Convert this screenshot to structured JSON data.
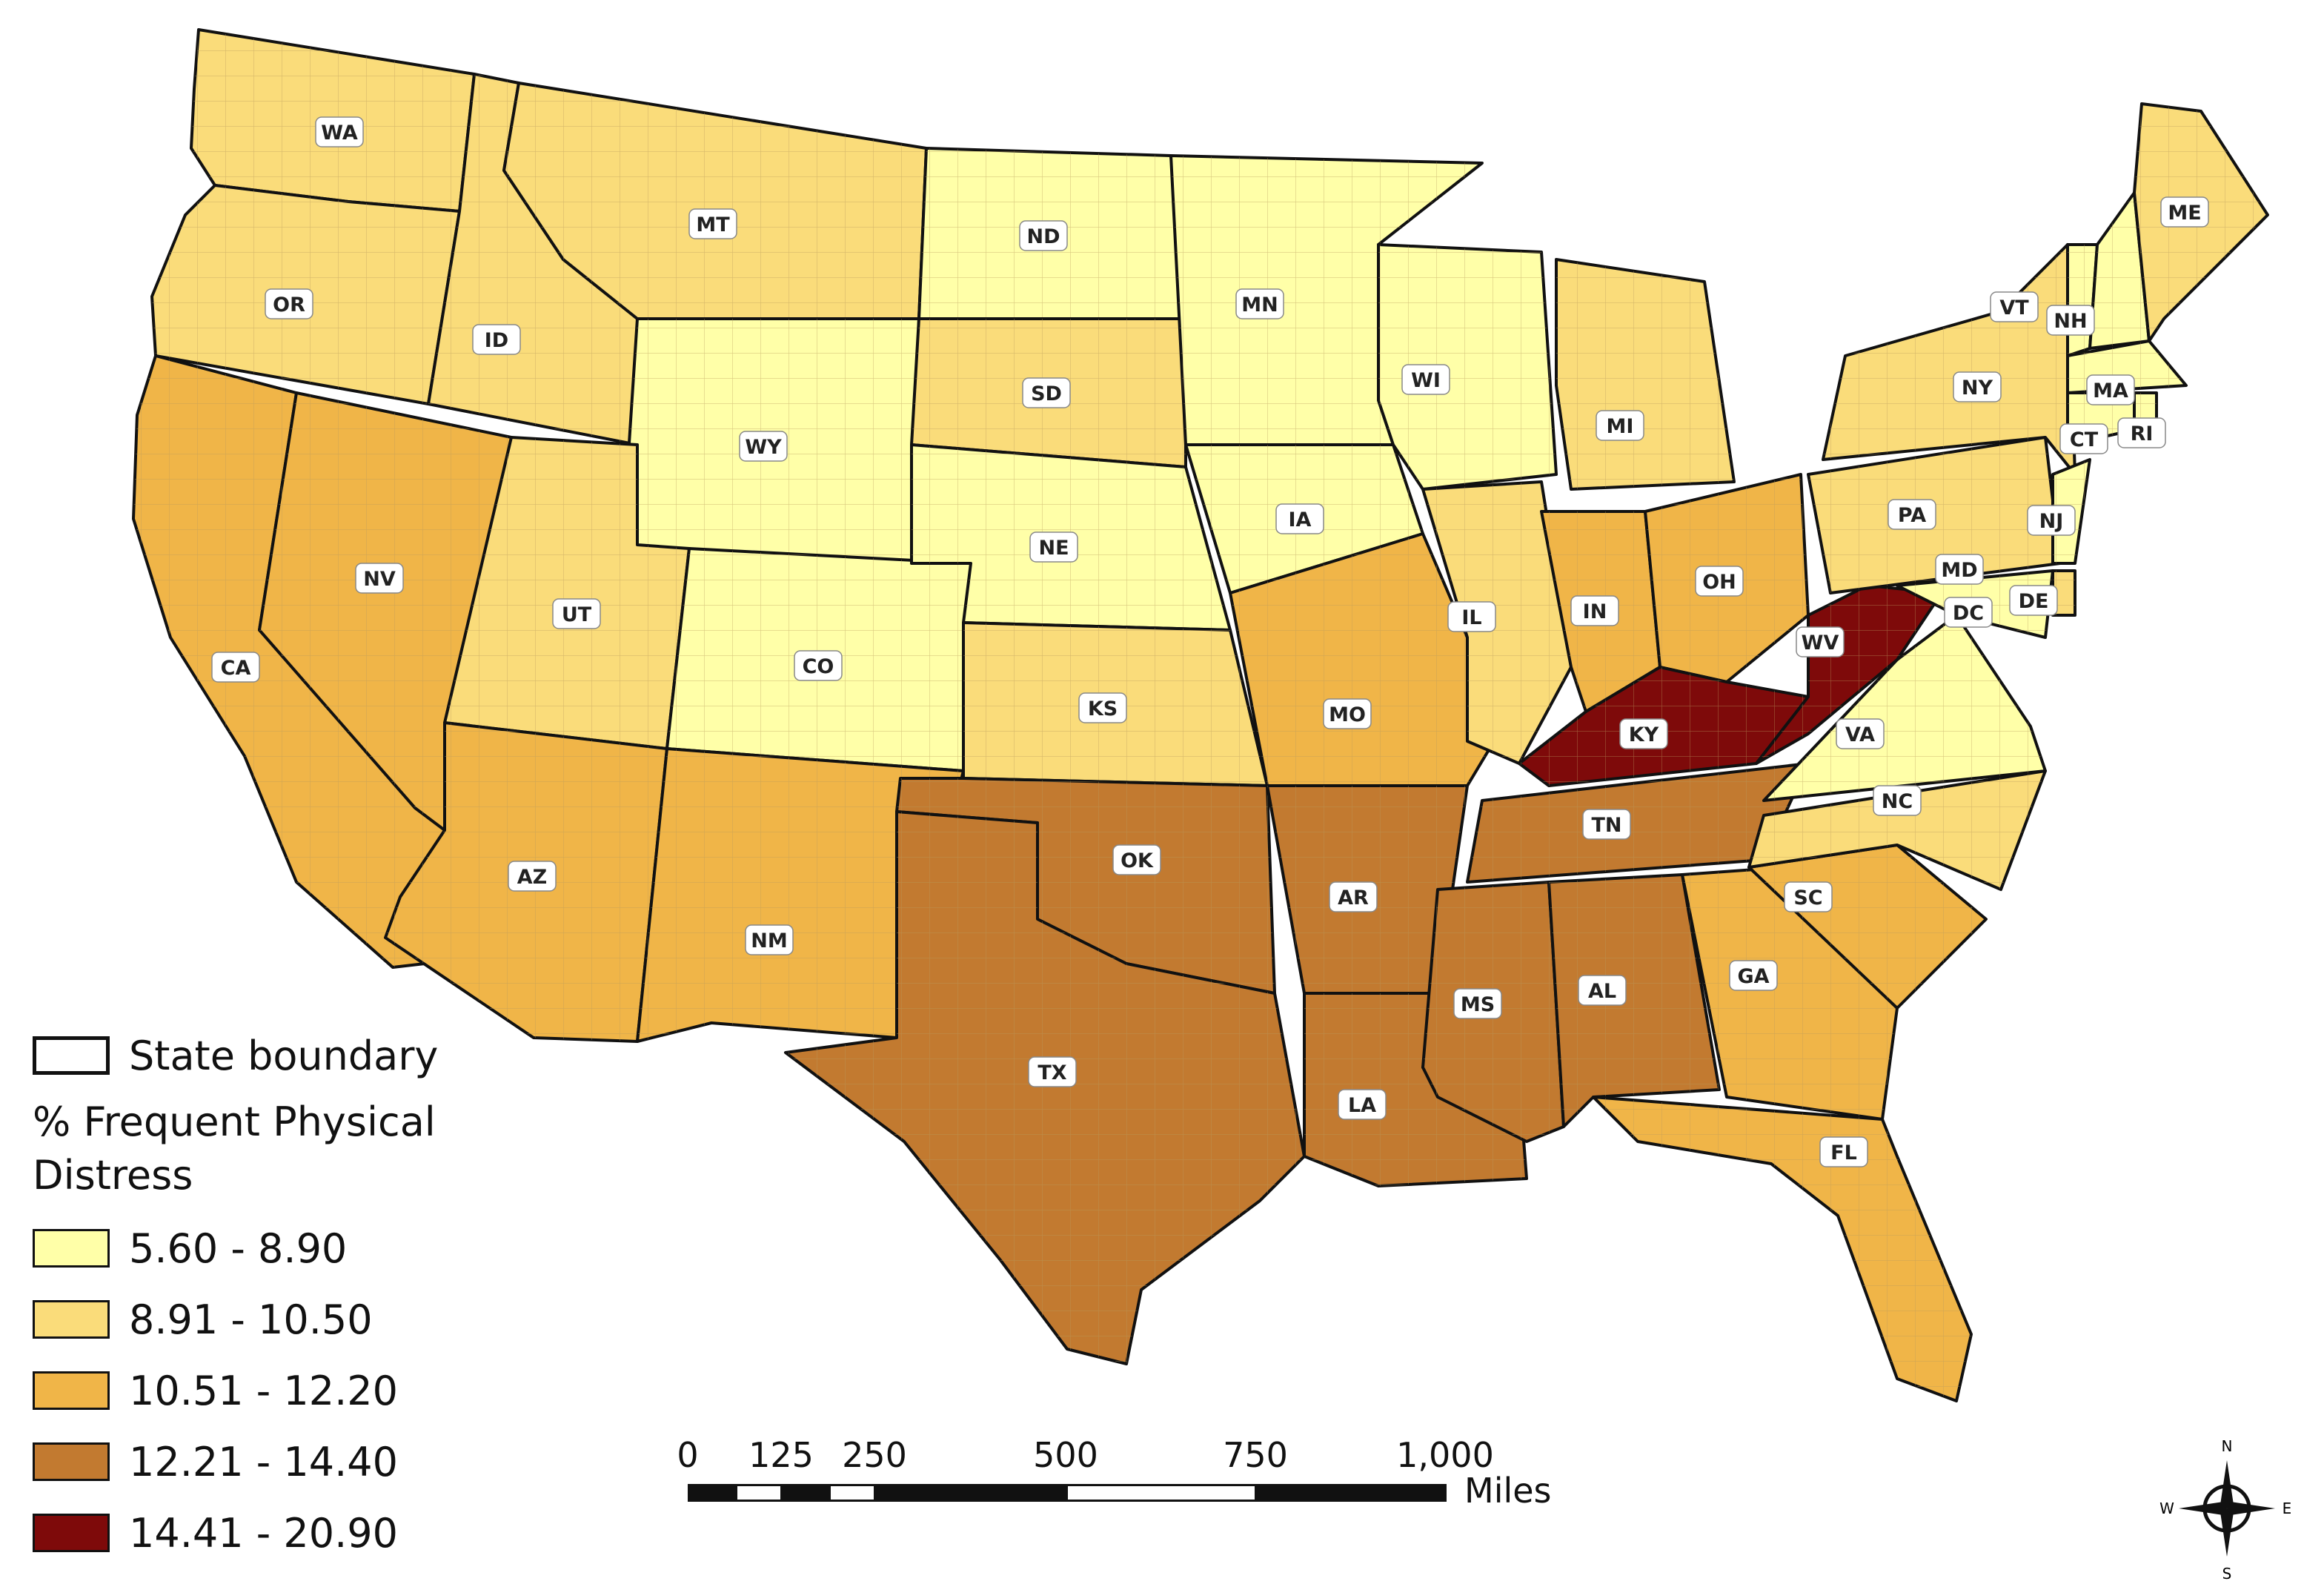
{
  "legend": {
    "boundary_label": "State boundary",
    "title_line1": "% Frequent Physical",
    "title_line2": "Distress",
    "classes": [
      {
        "label": "5.60 - 8.90",
        "color": "#FFFFA8"
      },
      {
        "label": "8.91 - 10.50",
        "color": "#FADC7A"
      },
      {
        "label": "10.51 - 12.20",
        "color": "#F0B548"
      },
      {
        "label": "12.21 - 14.40",
        "color": "#C27A30"
      },
      {
        "label": "14.41 - 20.90",
        "color": "#7E0A0A"
      }
    ]
  },
  "scalebar": {
    "ticks": [
      "0",
      "125",
      "250",
      "500",
      "750",
      "1,000"
    ],
    "unit": "Miles"
  },
  "compass": {
    "n": "N",
    "s": "S",
    "e": "E",
    "w": "W"
  },
  "states": [
    "WA",
    "OR",
    "CA",
    "ID",
    "NV",
    "MT",
    "WY",
    "UT",
    "AZ",
    "CO",
    "NM",
    "ND",
    "SD",
    "NE",
    "KS",
    "OK",
    "TX",
    "MN",
    "IA",
    "MO",
    "AR",
    "LA",
    "WI",
    "IL",
    "MI",
    "IN",
    "OH",
    "KY",
    "TN",
    "MS",
    "AL",
    "GA",
    "FL",
    "SC",
    "NC",
    "VA",
    "WV",
    "PA",
    "NY",
    "VT",
    "NH",
    "ME",
    "MA",
    "RI",
    "CT",
    "NJ",
    "DE",
    "MD",
    "DC"
  ]
}
